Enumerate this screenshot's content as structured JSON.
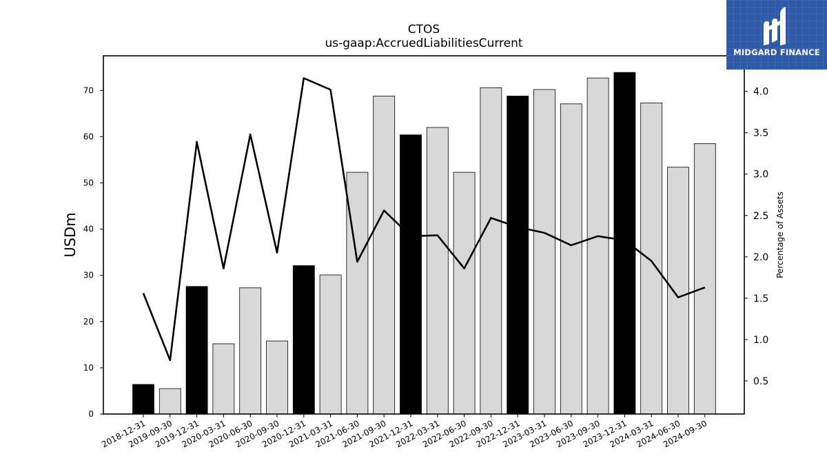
{
  "chart_data": {
    "type": "bar",
    "title": "CTOS",
    "subtitle": "us-gaap:AccruedLiabilitiesCurrent",
    "ylabel": "USDm",
    "y2label": "Percentage of Assets",
    "categories": [
      "2018-12-31",
      "2019-09-30",
      "2019-12-31",
      "2020-03-31",
      "2020-06-30",
      "2020-09-30",
      "2020-12-31",
      "2021-03-31",
      "2021-06-30",
      "2021-09-30",
      "2021-12-31",
      "2022-03-31",
      "2022-06-30",
      "2022-09-30",
      "2022-12-31",
      "2023-03-31",
      "2023-06-30",
      "2023-09-30",
      "2023-12-31",
      "2024-03-31",
      "2024-06-30",
      "2024-09-30"
    ],
    "series": [
      {
        "type": "bar",
        "values": [
          6.4,
          5.5,
          27.6,
          15.2,
          27.3,
          15.8,
          32.1,
          30.1,
          52.3,
          68.8,
          60.4,
          62.0,
          52.3,
          70.6,
          68.8,
          70.2,
          67.1,
          72.7,
          73.9,
          67.3,
          53.4,
          58.5
        ],
        "colors": [
          "#000000",
          "#d8d8d8",
          "#000000",
          "#d8d8d8",
          "#d8d8d8",
          "#d8d8d8",
          "#000000",
          "#d8d8d8",
          "#d8d8d8",
          "#d8d8d8",
          "#000000",
          "#d8d8d8",
          "#d8d8d8",
          "#d8d8d8",
          "#000000",
          "#d8d8d8",
          "#d8d8d8",
          "#d8d8d8",
          "#000000",
          "#d8d8d8",
          "#d8d8d8",
          "#d8d8d8"
        ]
      },
      {
        "type": "line",
        "axis": "right",
        "values": [
          1.56,
          0.75,
          3.39,
          1.86,
          3.48,
          2.05,
          4.16,
          4.02,
          1.94,
          2.56,
          2.25,
          2.26,
          1.86,
          2.47,
          2.36,
          2.29,
          2.14,
          2.25,
          2.2,
          1.95,
          1.51,
          1.63
        ]
      }
    ],
    "ylim": [
      0,
      77.5
    ],
    "y2lim": [
      0.1,
      4.43
    ],
    "yticks": [
      "0",
      "10",
      "20",
      "30",
      "40",
      "50",
      "60",
      "70"
    ],
    "y2ticks": [
      "0.5",
      "1.0",
      "1.5",
      "2.0",
      "2.5",
      "3.0",
      "3.5",
      "4.0"
    ],
    "grid": false,
    "legend": "none",
    "colors": {
      "highlight_bar": "#000000",
      "bar": "#d8d8d8",
      "line": "#000000"
    }
  },
  "logo": {
    "text": "MIDGARD FINANCE",
    "background": "#2f5aa8"
  }
}
